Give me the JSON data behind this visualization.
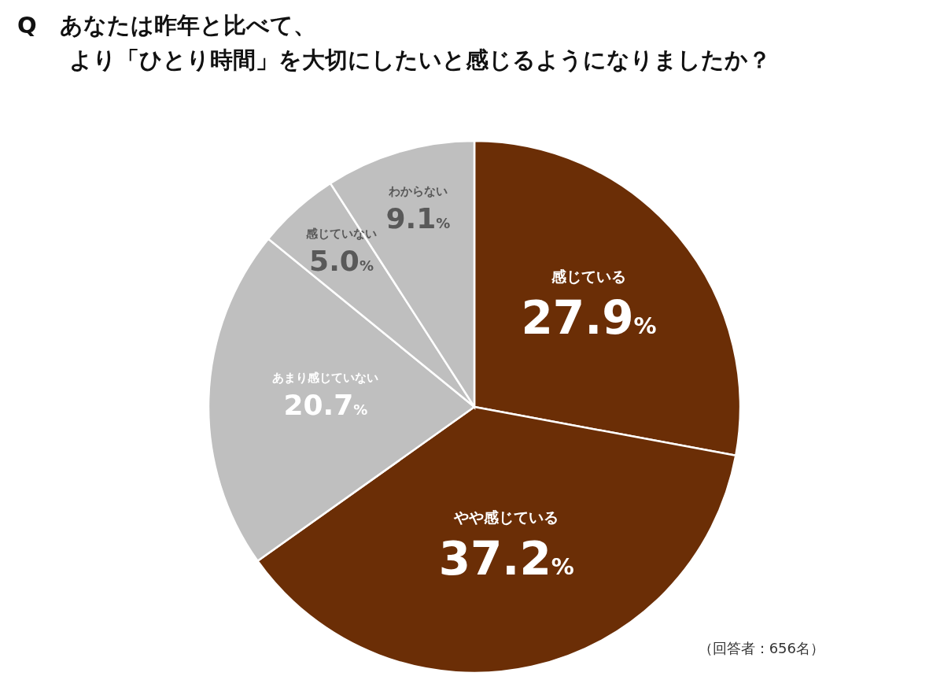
{
  "chart_data": {
    "type": "pie",
    "title": "Q　あなたは昨年と比べて、",
    "subtitle": "より「ひとり時間」を大切にしたいと感じるようになりましたか？",
    "categories": [
      "感じている",
      "やや感じている",
      "あまり感じていない",
      "感じていない",
      "わからない"
    ],
    "values": [
      27.9,
      37.2,
      20.7,
      5.0,
      9.1
    ],
    "value_labels": [
      "27.9%",
      "37.2%",
      "20.7%",
      "5.0%",
      "9.1%"
    ],
    "colors": [
      "#6b2e06",
      "#6b2e06",
      "#bfbfbf",
      "#bfbfbf",
      "#bfbfbf"
    ],
    "annotations": [
      "（回答者：656名）"
    ],
    "legend": false
  }
}
